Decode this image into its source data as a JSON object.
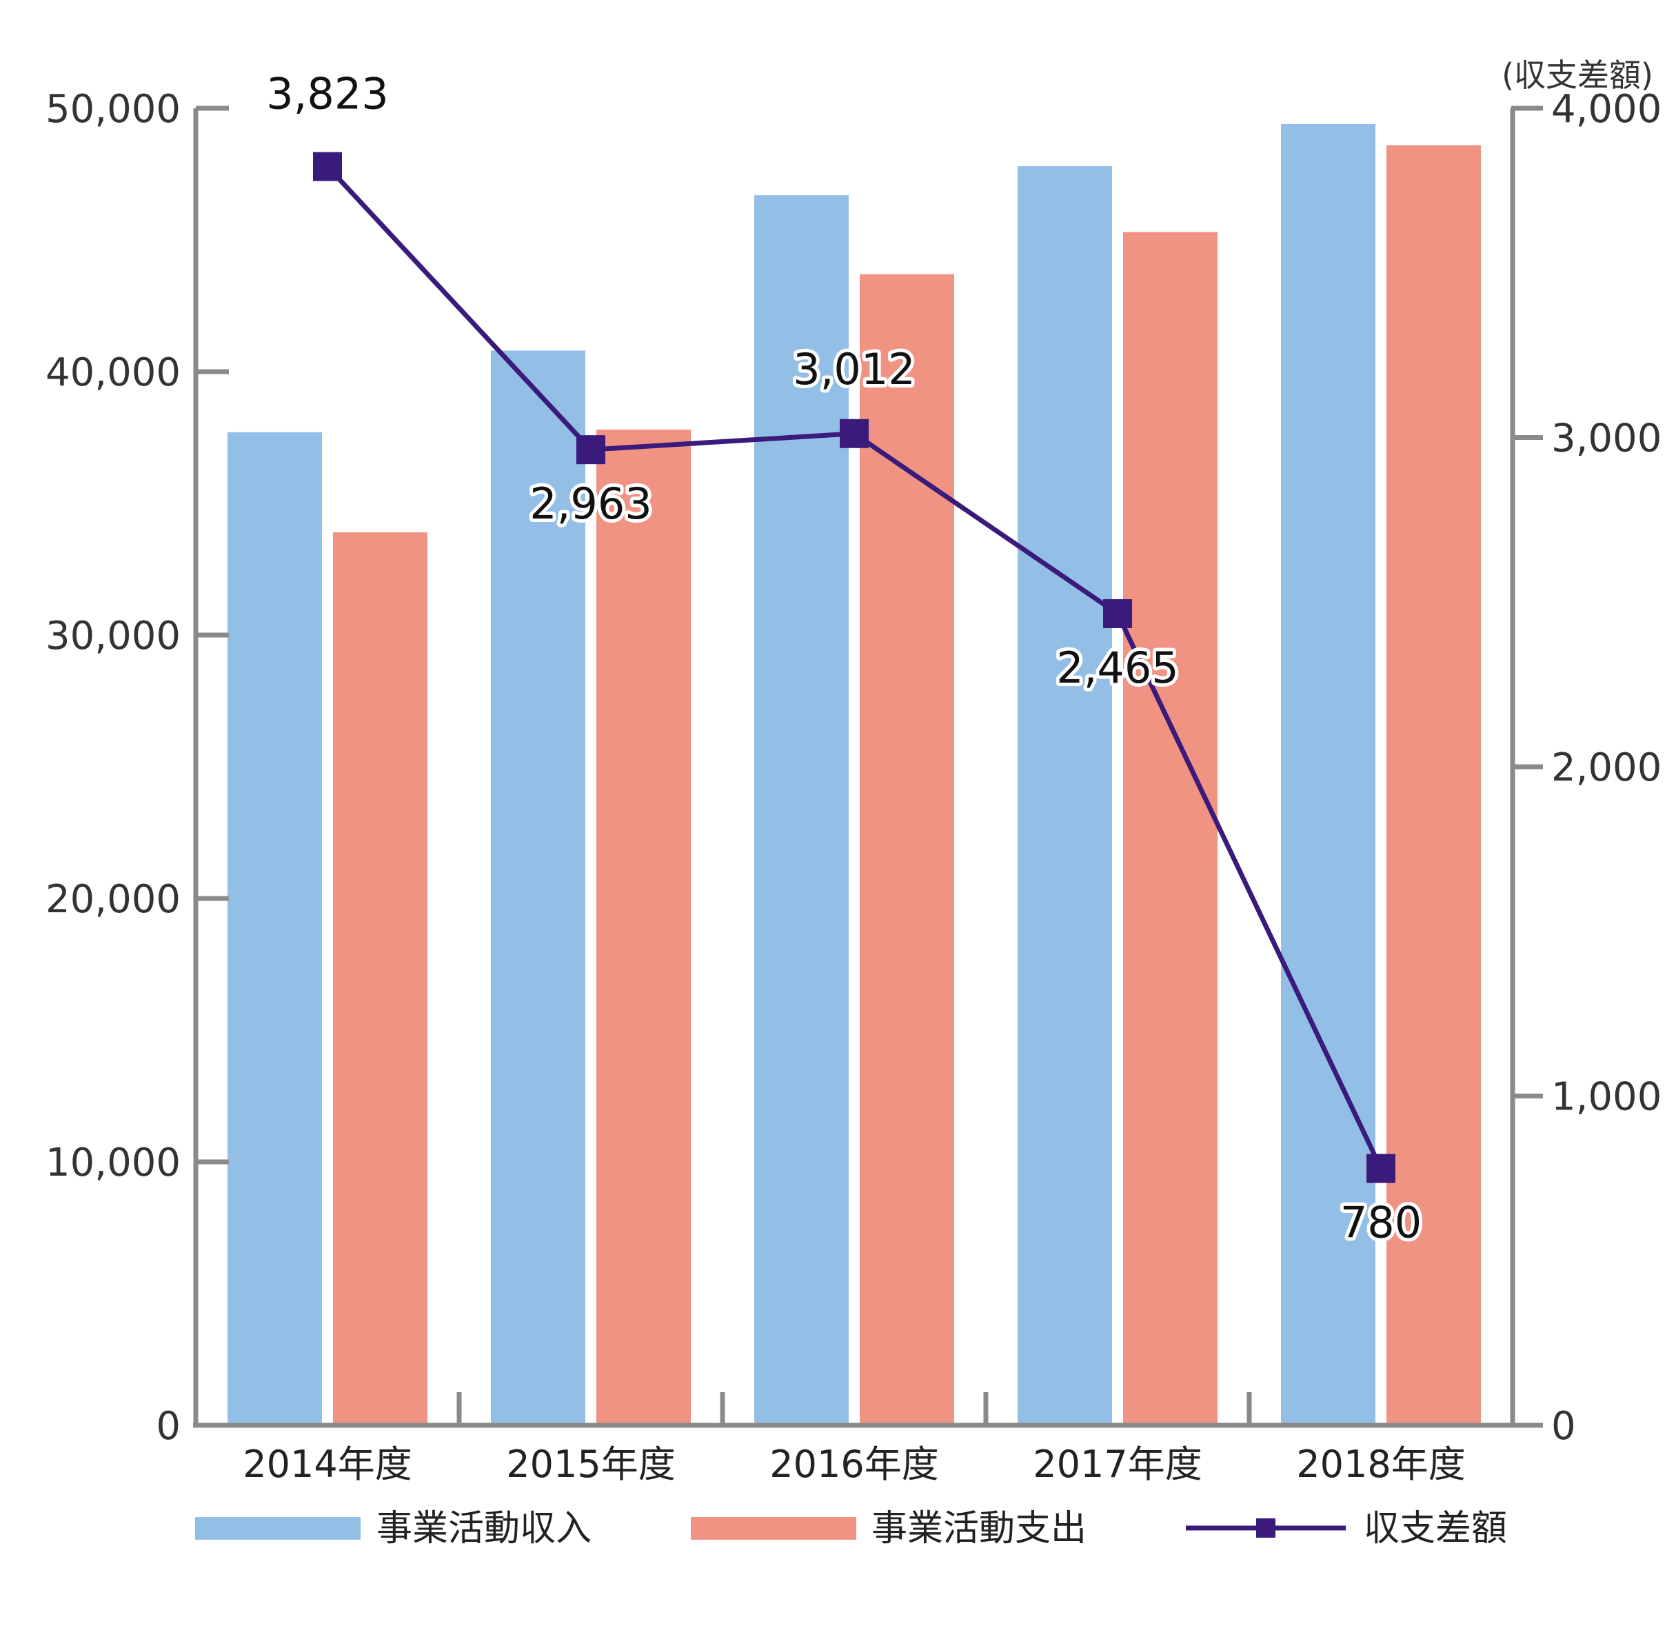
{
  "chart_data": {
    "type": "bar",
    "categories": [
      "2014年度",
      "2015年度",
      "2016年度",
      "2017年度",
      "2018年度"
    ],
    "series": [
      {
        "name": "事業活動収入",
        "type": "bar",
        "axis": "left",
        "color": "#93bfe6",
        "values": [
          37700,
          40800,
          46700,
          47800,
          49400
        ]
      },
      {
        "name": "事業活動支出",
        "type": "bar",
        "axis": "left",
        "color": "#f09383",
        "values": [
          33900,
          37800,
          43700,
          45300,
          48600
        ]
      },
      {
        "name": "収支差額",
        "type": "line",
        "axis": "right",
        "color": "#3a1a7a",
        "marker": "square",
        "values": [
          3823,
          2963,
          3012,
          2465,
          780
        ],
        "data_labels": [
          "3,823",
          "2,963",
          "3,012",
          "2,465",
          "780"
        ]
      }
    ],
    "y_left": {
      "ylim": [
        0,
        50000
      ],
      "ticks": [
        "0",
        "10,000",
        "20,000",
        "30,000",
        "40,000",
        "50,000"
      ]
    },
    "y_right": {
      "ylim": [
        0,
        4000
      ],
      "ticks": [
        "0",
        "1,000",
        "2,000",
        "3,000",
        "4,000"
      ],
      "label": "(収支差額)"
    },
    "grid": false,
    "legend": "bottom"
  }
}
